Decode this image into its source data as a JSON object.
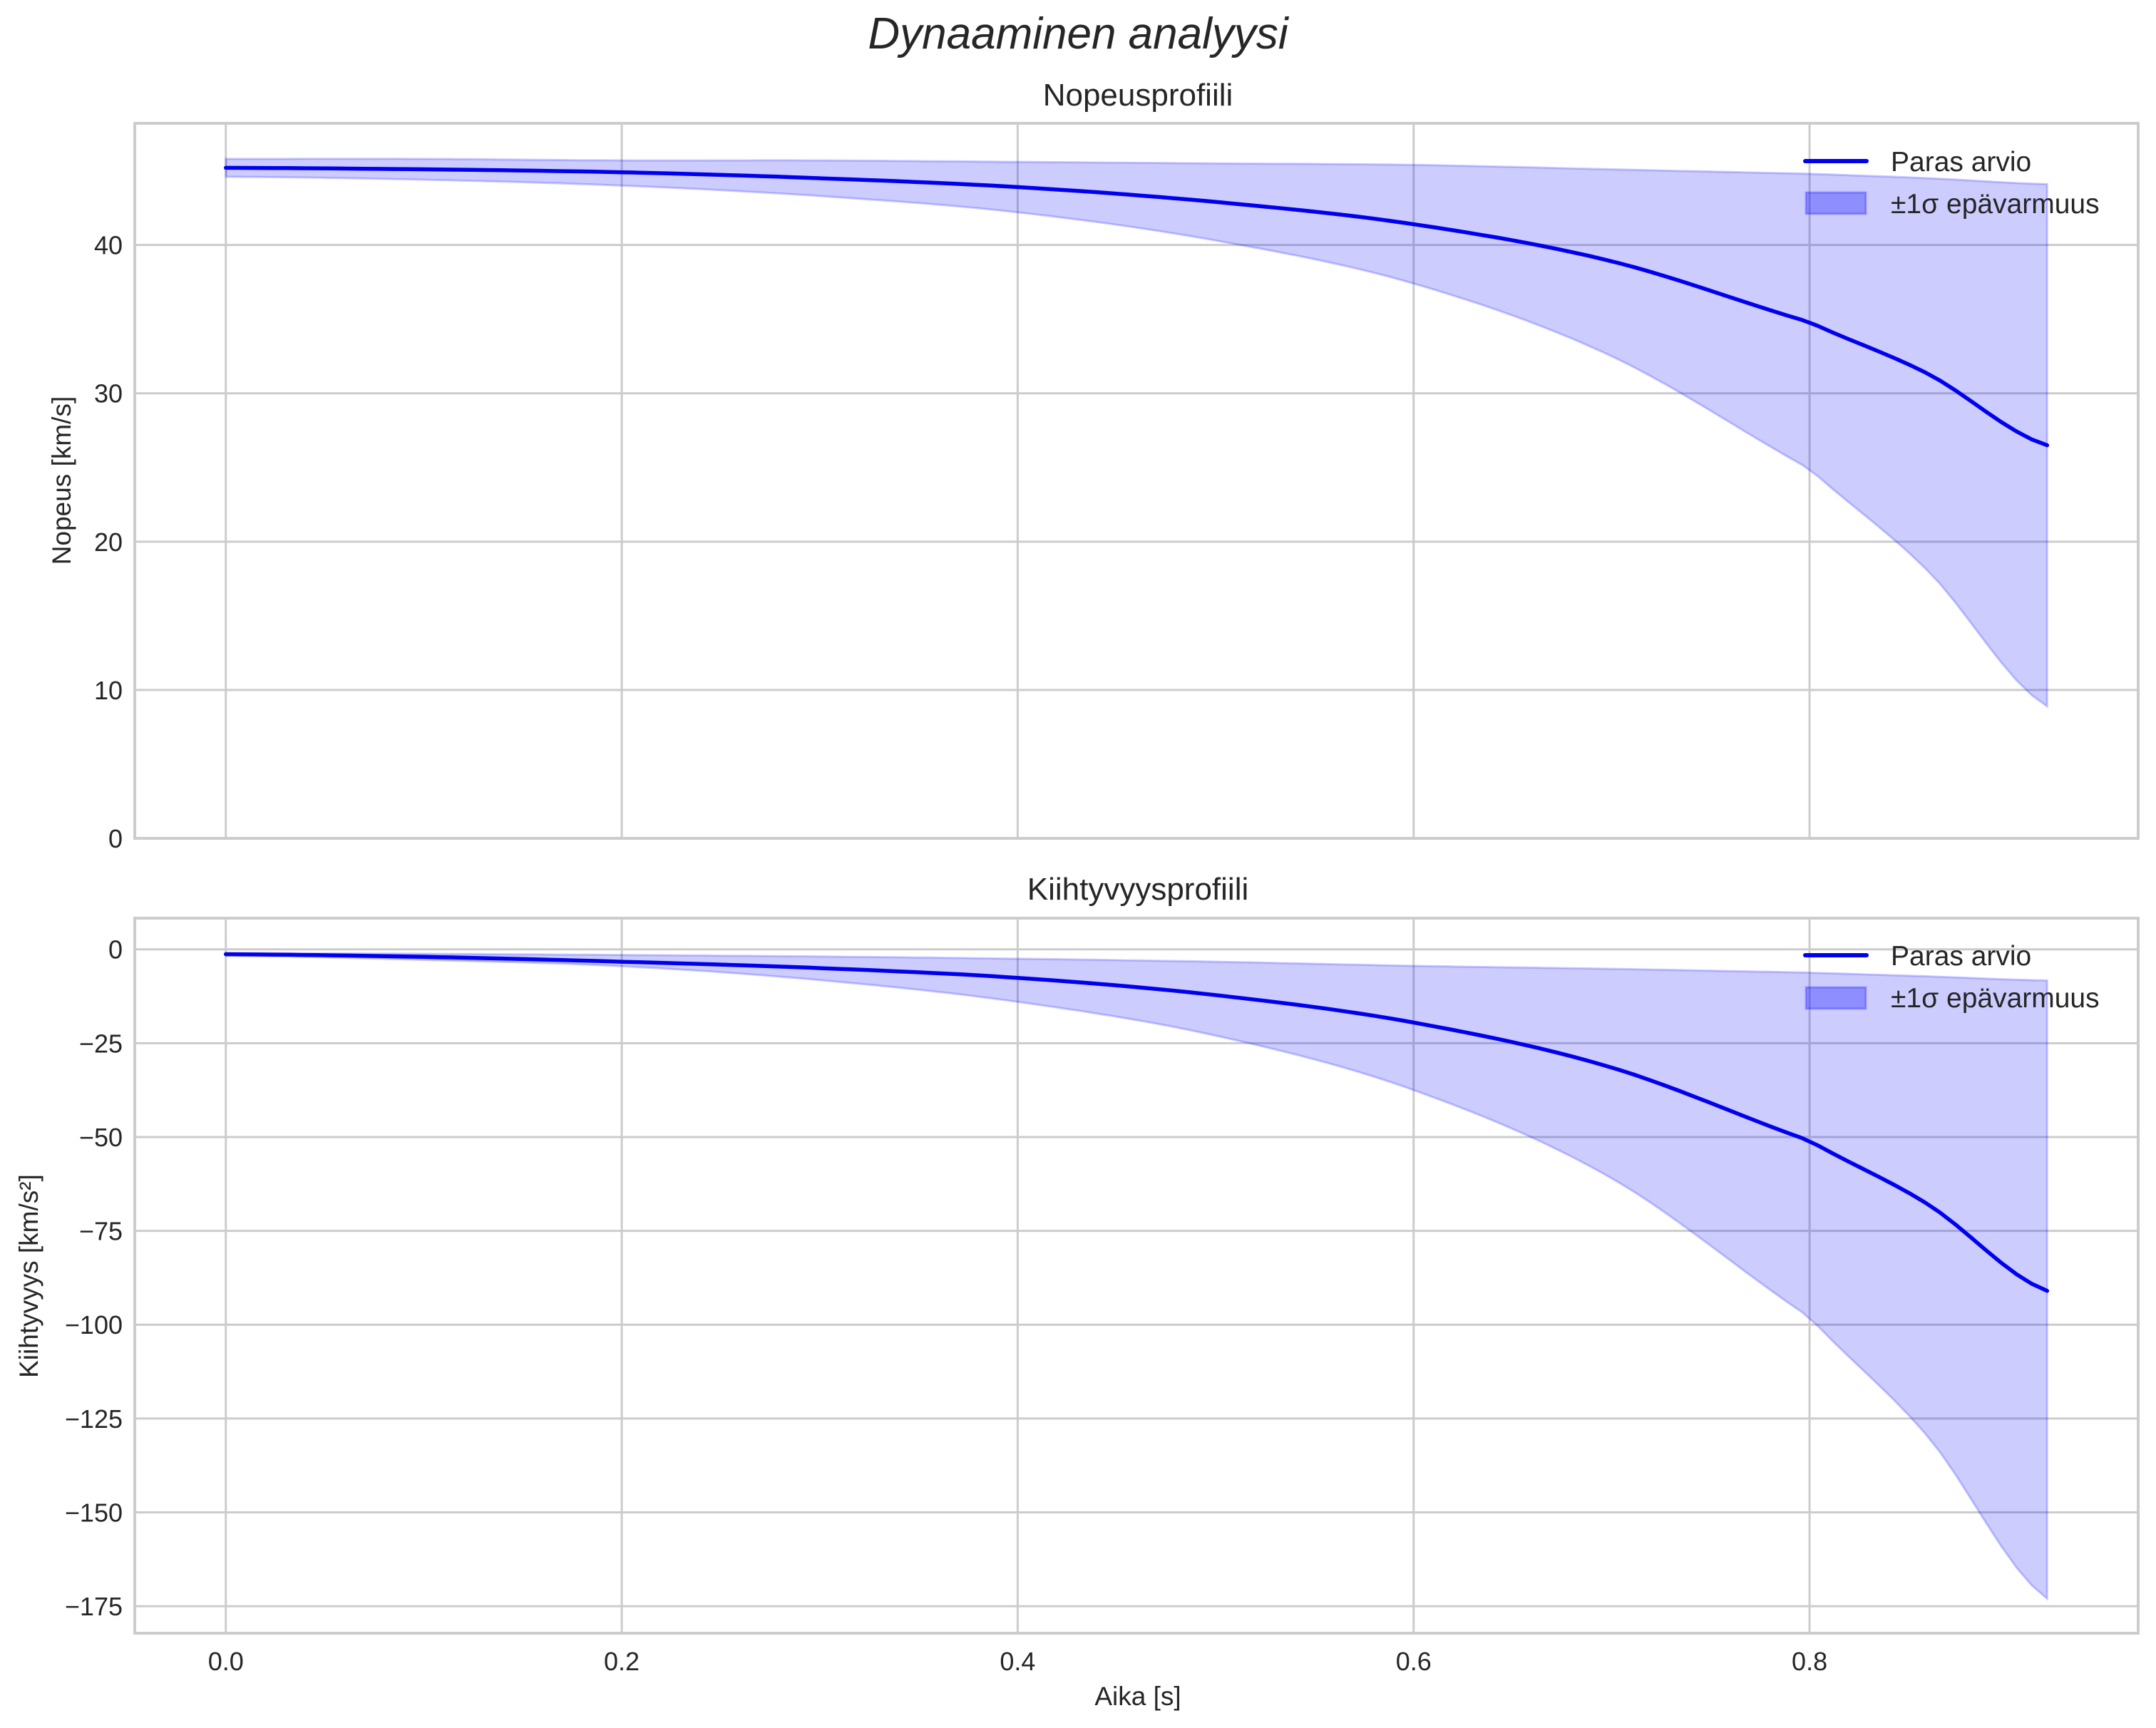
{
  "figure": {
    "suptitle": "Dynaaminen analyysi",
    "xlabel": "Aika [s]"
  },
  "colors": {
    "line": "#0000ee",
    "band_fill": "#0000ff",
    "band_alpha": 0.2,
    "grid": "#cccccc",
    "text": "#262626"
  },
  "legend": {
    "line_label": "Paras arvio",
    "band_label": "±1σ epävarmuus"
  },
  "panels": [
    {
      "title": "Nopeusprofiili",
      "ylabel": "Nopeus [km/s]",
      "yticks": [
        "0",
        "10",
        "20",
        "30",
        "40"
      ],
      "xticks": [
        "0.0",
        "0.2",
        "0.4",
        "0.6",
        "0.8"
      ]
    },
    {
      "title": "Kiihtyvyysprofiili",
      "ylabel": "Kiihtyvyys [km/s²]",
      "yticks": [
        "0",
        "−25",
        "−50",
        "−75",
        "−100",
        "−125",
        "−150",
        "−175"
      ],
      "xticks": [
        "0.0",
        "0.2",
        "0.4",
        "0.6",
        "0.8"
      ]
    }
  ],
  "chart_data": [
    {
      "type": "line",
      "title": "Nopeusprofiili",
      "suptitle": "Dynaaminen analyysi",
      "xlabel": "",
      "ylabel": "Nopeus [km/s]",
      "xlim": [
        -0.046,
        0.966
      ],
      "ylim": [
        0,
        48.2
      ],
      "grid": true,
      "legend_position": "upper right",
      "x": [
        0.0,
        0.1,
        0.2,
        0.3,
        0.4,
        0.5,
        0.6,
        0.7,
        0.8,
        0.86,
        0.92
      ],
      "series": [
        {
          "name": "Paras arvio",
          "kind": "line",
          "values": [
            45.2,
            45.1,
            44.9,
            44.5,
            43.9,
            42.9,
            41.4,
            38.9,
            34.8,
            31.3,
            26.5
          ]
        },
        {
          "name": "±1σ epävarmuus (yläraja)",
          "kind": "band_upper",
          "values": [
            45.8,
            45.8,
            45.7,
            45.7,
            45.6,
            45.5,
            45.4,
            45.1,
            44.8,
            44.5,
            44.1
          ]
        },
        {
          "name": "±1σ epävarmuus (alaraja)",
          "kind": "band_lower",
          "values": [
            44.6,
            44.4,
            44.0,
            43.3,
            42.2,
            40.3,
            37.4,
            32.5,
            24.9,
            18.0,
            8.9
          ]
        }
      ]
    },
    {
      "type": "line",
      "title": "Kiihtyvyysprofiili",
      "xlabel": "Aika [s]",
      "ylabel": "Kiihtyvyys [km/s²]",
      "xlim": [
        -0.046,
        0.966
      ],
      "ylim": [
        -182.2,
        8.3
      ],
      "grid": true,
      "legend_position": "upper right",
      "x": [
        0.0,
        0.1,
        0.2,
        0.3,
        0.4,
        0.5,
        0.6,
        0.7,
        0.8,
        0.86,
        0.92
      ],
      "series": [
        {
          "name": "Paras arvio",
          "kind": "line",
          "values": [
            -1.3,
            -2.0,
            -3.3,
            -5.0,
            -7.6,
            -12.2,
            -19.5,
            -31.5,
            -51.0,
            -68.0,
            -91.0
          ]
        },
        {
          "name": "±1σ epävarmuus (yläraja)",
          "kind": "band_upper",
          "values": [
            -1.0,
            -1.2,
            -1.5,
            -1.9,
            -2.5,
            -3.3,
            -4.4,
            -5.2,
            -6.2,
            -7.2,
            -8.3
          ]
        },
        {
          "name": "±1σ epävarmuus (alaraja)",
          "kind": "band_lower",
          "values": [
            -1.7,
            -2.8,
            -4.5,
            -8.2,
            -14.0,
            -23.0,
            -37.5,
            -61.0,
            -98.0,
            -130.0,
            -173.0
          ]
        }
      ]
    }
  ]
}
